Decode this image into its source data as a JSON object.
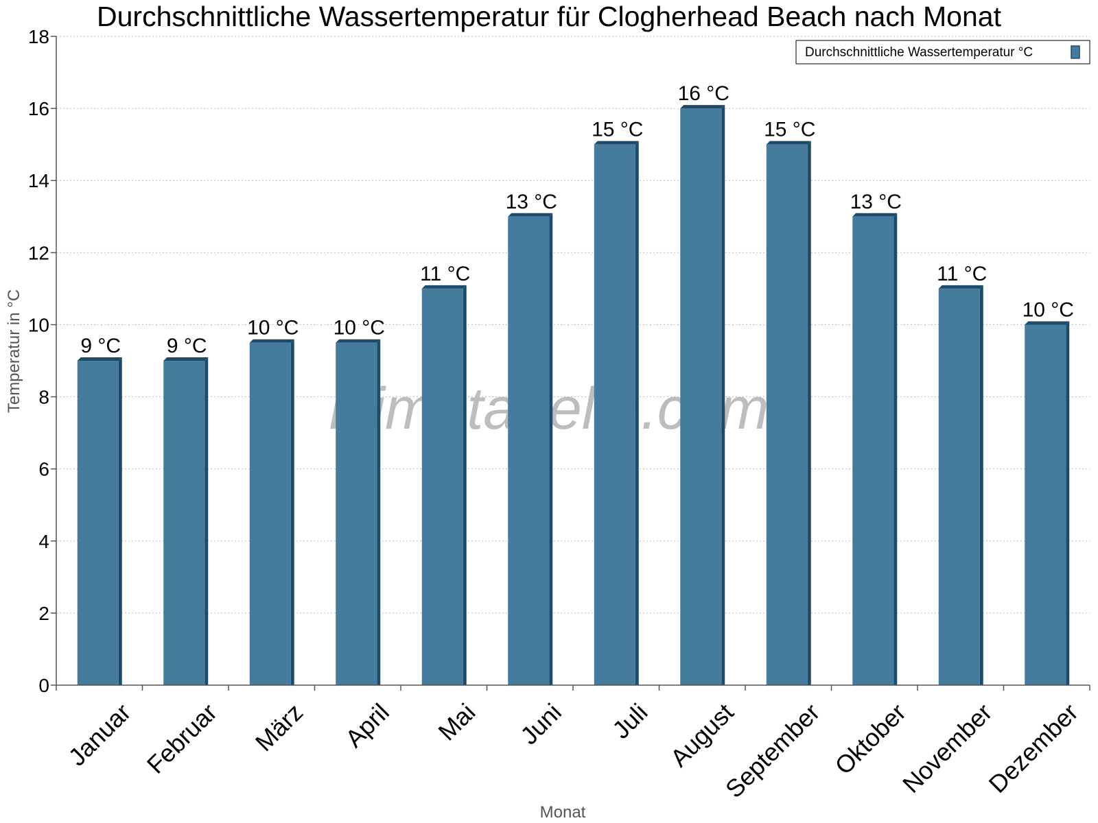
{
  "watermark": "klimatabelle.com",
  "chart_data": {
    "type": "bar",
    "title": "Durchschnittliche Wassertemperatur für Clogherhead Beach nach Monat",
    "xlabel": "Monat",
    "ylabel": "Temperatur in °C",
    "ylim": [
      0,
      18
    ],
    "yticks": [
      0,
      2,
      4,
      6,
      8,
      10,
      12,
      14,
      16,
      18
    ],
    "grid": true,
    "legend_position": "top-right",
    "categories": [
      "Januar",
      "Februar",
      "März",
      "April",
      "Mai",
      "Juni",
      "Juli",
      "August",
      "September",
      "Oktober",
      "November",
      "Dezember"
    ],
    "series": [
      {
        "name": "Durchschnittliche Wassertemperatur °C",
        "color": "#457b9d",
        "shade_color": "#1d4b6b",
        "values": [
          9,
          9,
          9.5,
          9.5,
          11,
          13,
          15,
          16,
          15,
          13,
          11,
          10
        ],
        "data_labels": [
          "9 °C",
          "9 °C",
          "10 °C",
          "10 °C",
          "11 °C",
          "13 °C",
          "15 °C",
          "16 °C",
          "15 °C",
          "13 °C",
          "11 °C",
          "10 °C"
        ]
      }
    ]
  }
}
